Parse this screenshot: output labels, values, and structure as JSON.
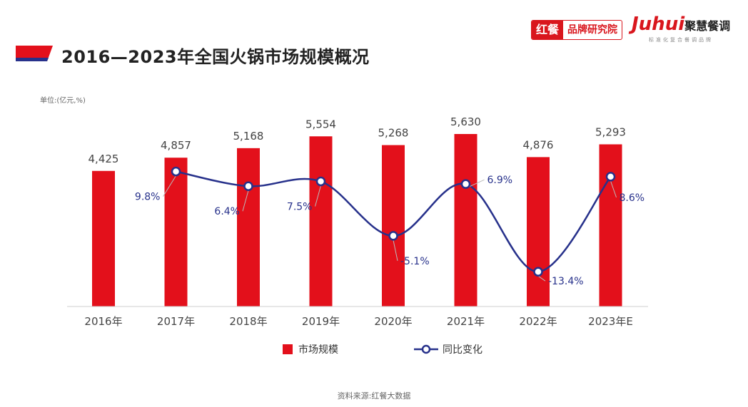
{
  "header": {
    "title": "2016—2023年全国火锅市场规模概况",
    "brand1_main": "红餐",
    "brand1_sub": "品牌研究院",
    "brand2_logo": "Juhui",
    "brand2_cn": "聚慧餐调",
    "brand2_sub": "标准化复合餐调品牌"
  },
  "unit_label": "单位:(亿元,%)",
  "source_label": "资料来源:红餐大数据",
  "colors": {
    "bar": "#e3101b",
    "line": "#27318b",
    "accent": "#d9161d"
  },
  "chart_data": {
    "type": "bar",
    "categories": [
      "2016年",
      "2017年",
      "2018年",
      "2019年",
      "2020年",
      "2021年",
      "2022年",
      "2023年E"
    ],
    "series": [
      {
        "name": "市场规模",
        "type": "bar",
        "values": [
          4425,
          4857,
          5168,
          5554,
          5268,
          5630,
          4876,
          5293
        ],
        "labels": [
          "4,425",
          "4,857",
          "5,168",
          "5,554",
          "5,268",
          "5,630",
          "4,876",
          "5,293"
        ]
      },
      {
        "name": "同比变化",
        "type": "line",
        "values": [
          null,
          9.8,
          6.4,
          7.5,
          -5.1,
          6.9,
          -13.4,
          8.6
        ],
        "labels": [
          "",
          "9.8%",
          "6.4%",
          "7.5%",
          "-5.1%",
          "6.9%",
          "-13.4%",
          "8.6%"
        ]
      }
    ],
    "legend_position": "bottom",
    "grid": false
  }
}
